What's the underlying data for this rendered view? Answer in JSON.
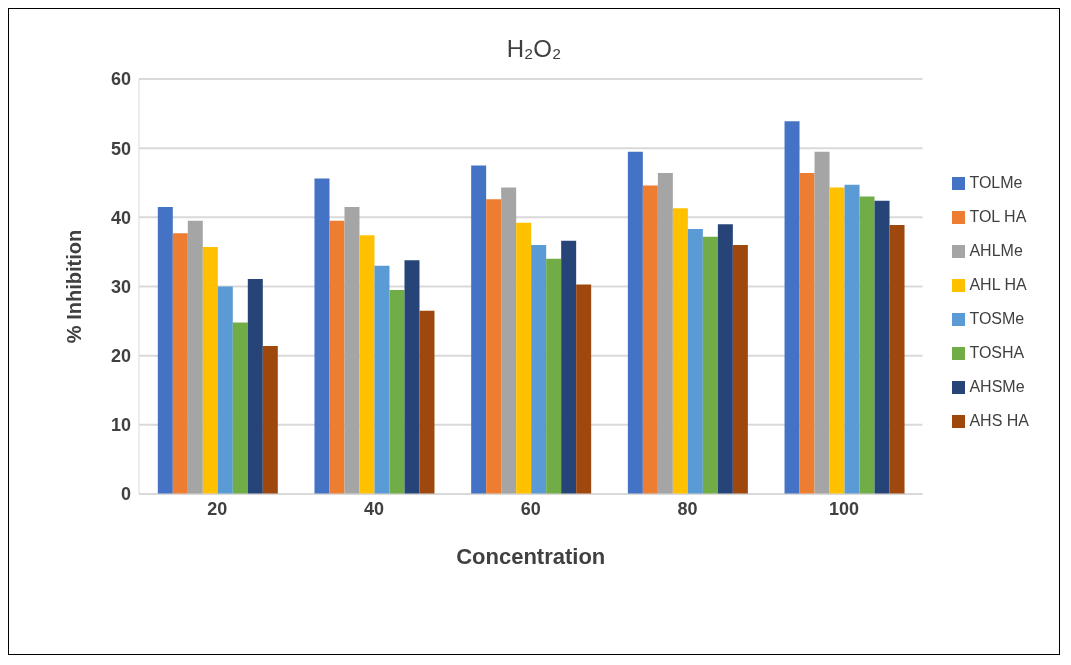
{
  "chart_data": {
    "type": "bar",
    "title": "H₂O₂",
    "xlabel": "Concentration",
    "ylabel": "% Inhibition",
    "categories": [
      "20",
      "40",
      "60",
      "80",
      "100"
    ],
    "series": [
      {
        "name": "TOLMe",
        "color": "#4472c4",
        "values": [
          41.5,
          45.6,
          47.5,
          49.5,
          53.9
        ]
      },
      {
        "name": "TOL HA",
        "color": "#ed7d31",
        "values": [
          37.7,
          39.5,
          42.6,
          44.6,
          46.4
        ]
      },
      {
        "name": "AHLMe",
        "color": "#a5a5a5",
        "values": [
          39.5,
          41.5,
          44.3,
          46.4,
          49.5
        ]
      },
      {
        "name": "AHL HA",
        "color": "#ffc000",
        "values": [
          35.7,
          37.4,
          39.2,
          41.3,
          44.3
        ]
      },
      {
        "name": "TOSMe",
        "color": "#5b9bd5",
        "values": [
          30,
          33,
          36,
          38.3,
          44.7
        ]
      },
      {
        "name": "TOSHA",
        "color": "#70ad47",
        "values": [
          24.8,
          29.5,
          34,
          37.2,
          43
        ]
      },
      {
        "name": "AHSMe",
        "color": "#264478",
        "values": [
          31.1,
          33.8,
          36.6,
          39,
          42.4
        ]
      },
      {
        "name": "AHS HA",
        "color": "#9e480e",
        "values": [
          21.4,
          26.5,
          30.3,
          36,
          38.9
        ]
      }
    ],
    "ylim": [
      0,
      60
    ],
    "yticks": [
      0,
      10,
      20,
      30,
      40,
      50,
      60
    ],
    "grid": "y",
    "legend": "right"
  }
}
